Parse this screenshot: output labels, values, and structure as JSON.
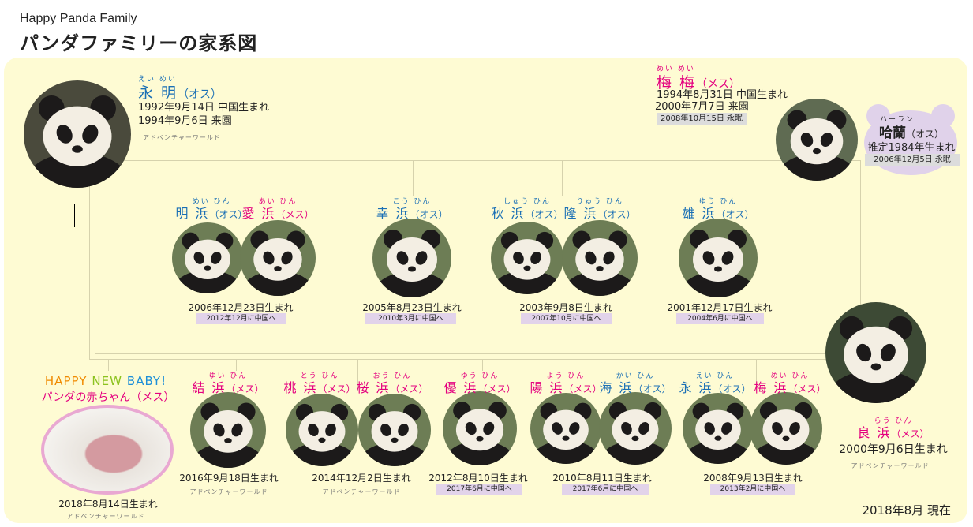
{
  "header": {
    "subtitle": "Happy Panda Family",
    "title": "パンダファミリーの家系図"
  },
  "colors": {
    "female": "#e4007f",
    "male": "#1a6fb5",
    "panel": "#fefbd3",
    "badge": "#e2d3ea",
    "memorial_badge": "#dcdcdc",
    "line": "#d6d2ad"
  },
  "parents": {
    "father": {
      "ruby": "えい めい",
      "name": "永 明",
      "sex": "（オス）",
      "sex_key": "male",
      "lines": [
        "1992年9月14日 中国生まれ",
        "1994年9月6日 来園"
      ],
      "place": "アドベンチャーワールド"
    },
    "mother": {
      "ruby": "めい めい",
      "name": "梅 梅",
      "sex": "（メス）",
      "sex_key": "female",
      "lines": [
        "1994年8月31日 中国生まれ",
        "2000年7月7日 来園"
      ],
      "memorial": "2008年10月15日 永眠"
    },
    "halan": {
      "ruby": "ハーラン",
      "name": "哈蘭",
      "sex": "（オス）",
      "born": "推定1984年生まれ",
      "memorial": "2006年12月5日 永眠"
    },
    "rauhin": {
      "ruby": "らう ひん",
      "name": "良 浜",
      "sex": "（メス）",
      "sex_key": "female",
      "born": "2000年9月6日生まれ",
      "place": "アドベンチャーワールド"
    }
  },
  "children_row1": [
    {
      "names": [
        {
          "ruby": "めい ひん",
          "name": "明 浜",
          "sex": "（オス）",
          "sex_key": "male"
        },
        {
          "ruby": "あい ひん",
          "name": "愛 浜",
          "sex": "（メス）",
          "sex_key": "female"
        }
      ],
      "born": "2006年12月23日生まれ",
      "status": "2012年12月に中国へ"
    },
    {
      "names": [
        {
          "ruby": "こう ひん",
          "name": "幸 浜",
          "sex": "（オス）",
          "sex_key": "male"
        }
      ],
      "born": "2005年8月23日生まれ",
      "status": "2010年3月に中国へ"
    },
    {
      "names": [
        {
          "ruby": "しゅう ひん",
          "name": "秋 浜",
          "sex": "（オス）",
          "sex_key": "male"
        },
        {
          "ruby": "りゅう ひん",
          "name": "隆 浜",
          "sex": "（オス）",
          "sex_key": "male"
        }
      ],
      "born": "2003年9月8日生まれ",
      "status": "2007年10月に中国へ"
    },
    {
      "names": [
        {
          "ruby": "ゆう ひん",
          "name": "雄 浜",
          "sex": "（オス）",
          "sex_key": "male"
        }
      ],
      "born": "2001年12月17日生まれ",
      "status": "2004年6月に中国へ"
    }
  ],
  "baby": {
    "headline": [
      "HAPPY",
      "NEW",
      "BABY!"
    ],
    "headline_colors": [
      "#f08a00",
      "#8cc21f",
      "#1d8fd8"
    ],
    "subtitle": "パンダの赤ちゃん（メス）",
    "born": "2018年8月14日生まれ",
    "place": "アドベンチャーワールド"
  },
  "children_row2": [
    {
      "names": [
        {
          "ruby": "ゆい ひん",
          "name": "結 浜",
          "sex": "（メス）",
          "sex_key": "female"
        }
      ],
      "born": "2016年9月18日生まれ",
      "place": "アドベンチャーワールド"
    },
    {
      "names": [
        {
          "ruby": "とう ひん",
          "name": "桃 浜",
          "sex": "（メス）",
          "sex_key": "female"
        },
        {
          "ruby": "おう ひん",
          "name": "桜 浜",
          "sex": "（メス）",
          "sex_key": "female"
        }
      ],
      "born": "2014年12月2日生まれ",
      "place": "アドベンチャーワールド"
    },
    {
      "names": [
        {
          "ruby": "ゆう ひん",
          "name": "優 浜",
          "sex": "（メス）",
          "sex_key": "female"
        }
      ],
      "born": "2012年8月10日生まれ",
      "status": "2017年6月に中国へ"
    },
    {
      "names": [
        {
          "ruby": "よう ひん",
          "name": "陽 浜",
          "sex": "（メス）",
          "sex_key": "female"
        },
        {
          "ruby": "かい ひん",
          "name": "海 浜",
          "sex": "（オス）",
          "sex_key": "male"
        }
      ],
      "born": "2010年8月11日生まれ",
      "status": "2017年6月に中国へ"
    },
    {
      "names": [
        {
          "ruby": "えい ひん",
          "name": "永 浜",
          "sex": "（オス）",
          "sex_key": "male"
        },
        {
          "ruby": "めい ひん",
          "name": "梅 浜",
          "sex": "（メス）",
          "sex_key": "female"
        }
      ],
      "born": "2008年9月13日生まれ",
      "status": "2013年2月に中国へ"
    }
  ],
  "footer": {
    "as_of": "2018年8月 現在"
  }
}
